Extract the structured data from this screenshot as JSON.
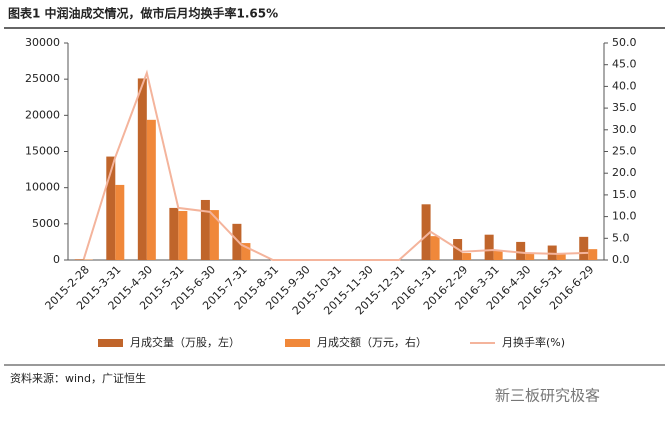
{
  "chart_data": {
    "type": "bar_line",
    "title": "图表1 中润油成交情况，做市后月均换手率1.65%",
    "categories": [
      "2015-2-28",
      "2015-3-31",
      "2015-4-30",
      "2015-5-31",
      "2015-6-30",
      "2015-7-31",
      "2015-8-31",
      "2015-9-30",
      "2015-10-31",
      "2015-11-30",
      "2015-12-31",
      "2016-1-31",
      "2016-2-29",
      "2016-3-31",
      "2016-4-30",
      "2016-5-31",
      "2016-6-29"
    ],
    "series": [
      {
        "name": "月成交量（万股，左）",
        "type": "bar",
        "color": "#c0652b",
        "values": [
          100,
          14300,
          25100,
          7200,
          8300,
          5000,
          0,
          0,
          0,
          0,
          0,
          7700,
          2900,
          3500,
          2500,
          2000,
          3200
        ]
      },
      {
        "name": "月成交额（万元，右）",
        "type": "bar",
        "axis": "y2",
        "color": "#f0883a",
        "values": [
          0.1,
          17.3,
          32.3,
          11.3,
          11.5,
          3.9,
          0,
          0,
          0,
          0,
          0,
          5.5,
          1.6,
          2.3,
          1.6,
          1.4,
          2.5
        ]
      },
      {
        "name": "月换手率(%)",
        "type": "line",
        "axis": "y2",
        "color": "#f4b49c",
        "values": [
          0.2,
          23.7,
          43.1,
          12.0,
          11.1,
          3.5,
          0,
          0,
          0,
          0,
          0,
          6.5,
          1.9,
          2.3,
          1.6,
          1.4,
          1.65
        ]
      }
    ],
    "ylim": [
      0,
      30000
    ],
    "yticks": [
      0,
      5000,
      10000,
      15000,
      20000,
      25000,
      30000
    ],
    "y2lim": [
      0,
      50
    ],
    "y2ticks": [
      {
        "value": 0,
        "label": "0.0"
      },
      {
        "value": 5,
        "label": "5.0"
      },
      {
        "value": 10,
        "label": "10.0"
      },
      {
        "value": 15,
        "label": "15.0"
      },
      {
        "value": 20,
        "label": "20.0"
      },
      {
        "value": 25,
        "label": "25.0"
      },
      {
        "value": 30,
        "label": "30.0"
      },
      {
        "value": 35,
        "label": "35.0"
      },
      {
        "value": 40,
        "label": "40.0"
      },
      {
        "value": 45,
        "label": "45.0"
      },
      {
        "value": 50,
        "label": "50.0"
      }
    ],
    "grid": false,
    "source": "资料来源：wind，广证恒生",
    "watermark": "新三板研究极客"
  }
}
